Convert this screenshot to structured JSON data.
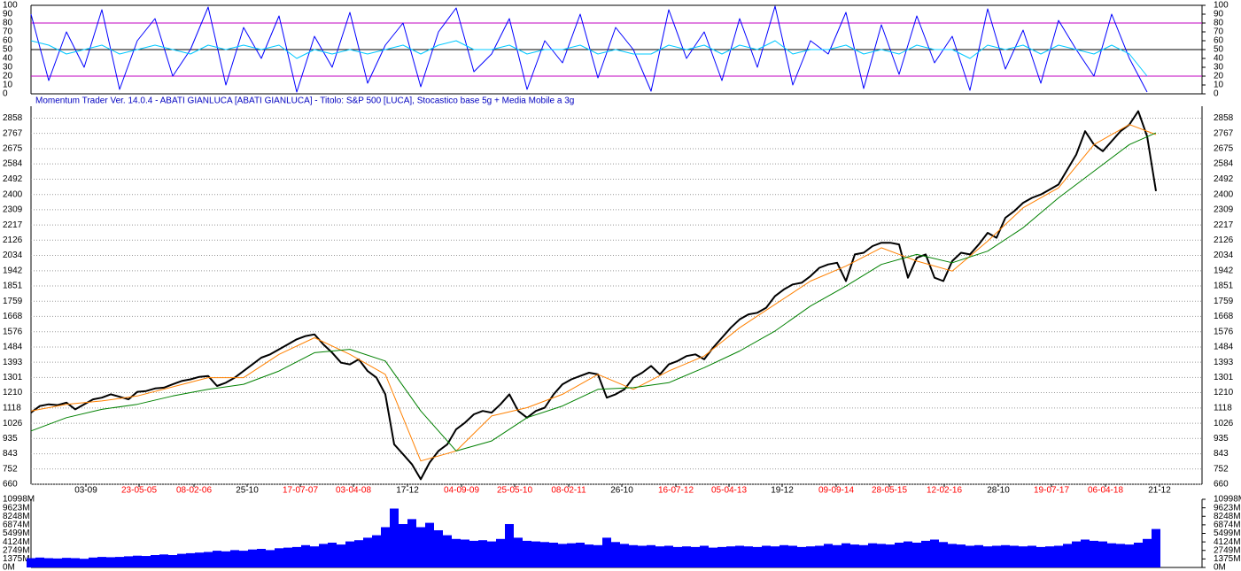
{
  "chart_data": [
    {
      "type": "line",
      "xlim": [
        0,
        66.1
      ],
      "ylim": [
        0,
        100
      ],
      "yticks": [
        0,
        10,
        20,
        30,
        40,
        50,
        60,
        70,
        80,
        90,
        100
      ],
      "hlines": [
        {
          "value": 80,
          "color": "#c000c0"
        },
        {
          "value": 50,
          "color": "#000000"
        },
        {
          "value": 20,
          "color": "#c000c0"
        }
      ],
      "series": [
        {
          "color": "#0000ff",
          "values": [
            90,
            15,
            70,
            30,
            95,
            5,
            60,
            85,
            20,
            50,
            98,
            10,
            75,
            40,
            88,
            2,
            65,
            30,
            92,
            12,
            55,
            80,
            8,
            70,
            97,
            25,
            45,
            85,
            5,
            60,
            35,
            90,
            18,
            75,
            50,
            3,
            95,
            40,
            70,
            15,
            85,
            30,
            99,
            10,
            60,
            45,
            92,
            6,
            78,
            22,
            88,
            35,
            65,
            4,
            96,
            28,
            72,
            12,
            83,
            50,
            20,
            90,
            40,
            2
          ]
        },
        {
          "color": "#00c8ff",
          "values": [
            60,
            55,
            45,
            50,
            55,
            45,
            50,
            55,
            50,
            45,
            55,
            50,
            55,
            50,
            55,
            40,
            50,
            45,
            50,
            45,
            50,
            55,
            45,
            55,
            60,
            50,
            50,
            55,
            45,
            50,
            50,
            55,
            45,
            50,
            45,
            45,
            55,
            50,
            55,
            45,
            55,
            50,
            60,
            45,
            50,
            50,
            55,
            45,
            50,
            45,
            55,
            50,
            50,
            40,
            55,
            50,
            55,
            45,
            55,
            50,
            45,
            55,
            45,
            20
          ]
        }
      ]
    },
    {
      "type": "line",
      "title": "Momentum Trader   Ver. 14.0.4  -  ABATI GIANLUCA  [ABATI GIANLUCA] - Titolo: S&P 500  [LUCA],   Stocastico base 5g + Media Mobile a 3g",
      "xlim": [
        0,
        132.2
      ],
      "ylim": [
        660,
        2930
      ],
      "grid": true,
      "yticks": [
        660,
        752,
        843,
        935,
        1026,
        1118,
        1210,
        1301,
        1393,
        1484,
        1576,
        1668,
        1759,
        1851,
        1942,
        2034,
        2126,
        2217,
        2309,
        2400,
        2492,
        2584,
        2675,
        2767,
        2858
      ],
      "xticks": [
        {
          "value": 6.2,
          "label": "03-09",
          "color": "#000000"
        },
        {
          "value": 12.2,
          "label": "23-05-05",
          "color": "#ff0000"
        },
        {
          "value": 18.4,
          "label": "08-02-06",
          "color": "#ff0000"
        },
        {
          "value": 24.4,
          "label": "25-10",
          "color": "#000000"
        },
        {
          "value": 30.4,
          "label": "17-07-07",
          "color": "#ff0000"
        },
        {
          "value": 36.4,
          "label": "03-04-08",
          "color": "#ff0000"
        },
        {
          "value": 42.5,
          "label": "17-12",
          "color": "#000000"
        },
        {
          "value": 48.6,
          "label": "04-09-09",
          "color": "#ff0000"
        },
        {
          "value": 54.6,
          "label": "25-05-10",
          "color": "#ff0000"
        },
        {
          "value": 60.7,
          "label": "08-02-11",
          "color": "#ff0000"
        },
        {
          "value": 66.7,
          "label": "26-10",
          "color": "#000000"
        },
        {
          "value": 72.8,
          "label": "16-07-12",
          "color": "#ff0000"
        },
        {
          "value": 78.8,
          "label": "05-04-13",
          "color": "#ff0000"
        },
        {
          "value": 84.8,
          "label": "19-12",
          "color": "#000000"
        },
        {
          "value": 90.9,
          "label": "09-09-14",
          "color": "#ff0000"
        },
        {
          "value": 96.9,
          "label": "28-05-15",
          "color": "#ff0000"
        },
        {
          "value": 103.1,
          "label": "12-02-16",
          "color": "#ff0000"
        },
        {
          "value": 109.2,
          "label": "28-10",
          "color": "#000000"
        },
        {
          "value": 115.2,
          "label": "19-07-17",
          "color": "#ff0000"
        },
        {
          "value": 121.3,
          "label": "06-04-18",
          "color": "#ff0000"
        },
        {
          "value": 127.4,
          "label": "21-12",
          "color": "#000000"
        }
      ],
      "series": [
        {
          "color": "#000000",
          "width": 2,
          "values": [
            1090,
            1130,
            1140,
            1135,
            1150,
            1110,
            1140,
            1170,
            1180,
            1200,
            1185,
            1170,
            1215,
            1220,
            1235,
            1240,
            1260,
            1280,
            1290,
            1305,
            1310,
            1250,
            1270,
            1300,
            1340,
            1380,
            1420,
            1440,
            1470,
            1500,
            1530,
            1550,
            1560,
            1500,
            1450,
            1390,
            1380,
            1410,
            1340,
            1300,
            1200,
            900,
            840,
            780,
            690,
            790,
            860,
            900,
            990,
            1030,
            1080,
            1100,
            1090,
            1140,
            1200,
            1100,
            1060,
            1100,
            1120,
            1200,
            1260,
            1290,
            1310,
            1330,
            1320,
            1180,
            1200,
            1230,
            1300,
            1330,
            1370,
            1320,
            1380,
            1400,
            1430,
            1440,
            1410,
            1480,
            1540,
            1600,
            1650,
            1680,
            1690,
            1720,
            1790,
            1830,
            1860,
            1870,
            1910,
            1960,
            1980,
            1990,
            1880,
            2040,
            2050,
            2090,
            2110,
            2110,
            2100,
            1900,
            2020,
            2040,
            1900,
            1880,
            2000,
            2050,
            2040,
            2100,
            2170,
            2140,
            2260,
            2300,
            2350,
            2380,
            2400,
            2430,
            2460,
            2550,
            2640,
            2780,
            2700,
            2660,
            2720,
            2780,
            2820,
            2900,
            2750,
            2420
          ]
        },
        {
          "color": "#ff8000",
          "width": 1,
          "x": [
            0,
            4,
            8,
            12,
            16,
            20,
            24,
            28,
            32,
            36,
            40,
            44,
            48,
            52,
            56,
            60,
            64,
            68,
            72,
            76,
            80,
            84,
            88,
            92,
            96,
            100,
            104,
            108,
            112,
            116,
            120,
            124,
            127
          ],
          "values": [
            1100,
            1140,
            1160,
            1190,
            1245,
            1300,
            1300,
            1440,
            1540,
            1440,
            1320,
            800,
            860,
            1070,
            1120,
            1200,
            1320,
            1230,
            1340,
            1430,
            1600,
            1740,
            1880,
            1970,
            2080,
            2000,
            1940,
            2120,
            2320,
            2440,
            2700,
            2820,
            2760
          ]
        },
        {
          "color": "#008000",
          "width": 1,
          "x": [
            0,
            4,
            8,
            12,
            16,
            20,
            24,
            28,
            32,
            36,
            40,
            44,
            48,
            52,
            56,
            60,
            64,
            68,
            72,
            76,
            80,
            84,
            88,
            92,
            96,
            100,
            104,
            108,
            112,
            116,
            120,
            124,
            127
          ],
          "values": [
            980,
            1060,
            1110,
            1140,
            1190,
            1230,
            1260,
            1340,
            1450,
            1470,
            1400,
            1100,
            860,
            920,
            1060,
            1130,
            1230,
            1240,
            1270,
            1360,
            1460,
            1580,
            1730,
            1850,
            1980,
            2040,
            1990,
            2060,
            2200,
            2380,
            2540,
            2700,
            2770
          ]
        }
      ]
    },
    {
      "type": "bar",
      "xlim": [
        0,
        132.2
      ],
      "ylim": [
        0,
        10998
      ],
      "color": "#0000ff",
      "yticks": [
        {
          "value": 0,
          "label": "0M"
        },
        {
          "value": 1375,
          "label": "1375M"
        },
        {
          "value": 2749,
          "label": "2749M"
        },
        {
          "value": 4124,
          "label": "4124M"
        },
        {
          "value": 5499,
          "label": "5499M"
        },
        {
          "value": 6874,
          "label": "6874M"
        },
        {
          "value": 8248,
          "label": "8248M"
        },
        {
          "value": 9623,
          "label": "9623M"
        },
        {
          "value": 10998,
          "label": "10998M"
        }
      ],
      "values": [
        1500,
        1600,
        1500,
        1450,
        1550,
        1500,
        1400,
        1600,
        1700,
        1650,
        1700,
        1800,
        1900,
        1850,
        2000,
        2100,
        2000,
        2200,
        2300,
        2400,
        2500,
        2700,
        2600,
        2800,
        2700,
        2900,
        3000,
        2800,
        3100,
        3200,
        3300,
        3600,
        3400,
        3800,
        4000,
        3700,
        4200,
        4400,
        4800,
        5200,
        6500,
        9500,
        7000,
        7800,
        6500,
        7200,
        6000,
        5200,
        4600,
        4500,
        4300,
        4400,
        4200,
        4600,
        7000,
        4800,
        4300,
        4200,
        4100,
        4000,
        3800,
        3900,
        4000,
        3700,
        3600,
        4800,
        4100,
        3800,
        3600,
        3500,
        3600,
        3400,
        3500,
        3300,
        3400,
        3300,
        3500,
        3200,
        3300,
        3400,
        3500,
        3400,
        3300,
        3500,
        3400,
        3600,
        3500,
        3300,
        3400,
        3500,
        3800,
        3600,
        3900,
        3700,
        3600,
        3900,
        3800,
        3700,
        4000,
        4200,
        4000,
        4300,
        4500,
        4100,
        3800,
        3700,
        3500,
        3600,
        3400,
        3500,
        3600,
        3500,
        3400,
        3500,
        3300,
        3400,
        3500,
        3800,
        4200,
        4500,
        4300,
        4200,
        3900,
        3800,
        3700,
        4000,
        4600,
        6200
      ]
    }
  ]
}
